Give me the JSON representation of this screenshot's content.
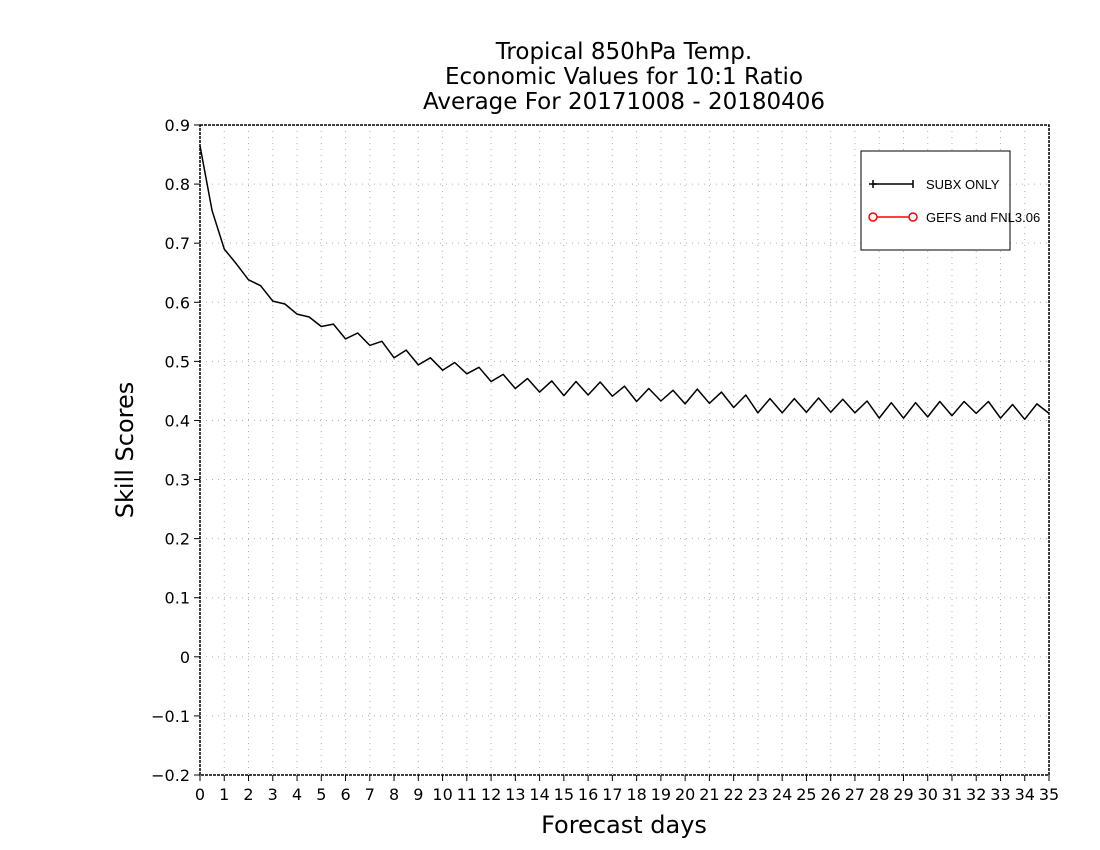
{
  "chart_data": {
    "type": "line",
    "title": [
      "Tropical 850hPa Temp.",
      "Economic Values for 10:1 Ratio",
      "Average For 20171008 - 20180406"
    ],
    "xlabel": "Forecast days",
    "ylabel": "Skill Scores",
    "xlim": [
      0,
      35
    ],
    "ylim": [
      -0.2,
      0.9
    ],
    "xticks": [
      0,
      1,
      2,
      3,
      4,
      5,
      6,
      7,
      8,
      9,
      10,
      11,
      12,
      13,
      14,
      15,
      16,
      17,
      18,
      19,
      20,
      21,
      22,
      23,
      24,
      25,
      26,
      27,
      28,
      29,
      30,
      31,
      32,
      33,
      34,
      35
    ],
    "yticks": [
      -0.2,
      -0.1,
      0,
      0.1,
      0.2,
      0.3,
      0.4,
      0.5,
      0.6,
      0.7,
      0.8,
      0.9
    ],
    "ytick_labels": [
      "−0.2",
      "−0.1",
      "0",
      "0.1",
      "0.2",
      "0.3",
      "0.4",
      "0.5",
      "0.6",
      "0.7",
      "0.8",
      "0.9"
    ],
    "grid": true,
    "legend_position": "top-right",
    "series": [
      {
        "name": "SUBX ONLY",
        "color": "#000000",
        "marker": "plus",
        "x": [
          0,
          0.5,
          1,
          1.5,
          2,
          2.5,
          3,
          3.5,
          4,
          4.5,
          5,
          5.5,
          6,
          6.5,
          7,
          7.5,
          8,
          8.5,
          9,
          9.5,
          10,
          10.5,
          11,
          11.5,
          12,
          12.5,
          13,
          13.5,
          14,
          14.5,
          15,
          15.5,
          16,
          16.5,
          17,
          17.5,
          18,
          18.5,
          19,
          19.5,
          20,
          20.5,
          21,
          21.5,
          22,
          22.5,
          23,
          23.5,
          24,
          24.5,
          25,
          25.5,
          26,
          26.5,
          27,
          27.5,
          28,
          28.5,
          29,
          29.5,
          30,
          30.5,
          31,
          31.5,
          32,
          32.5,
          33,
          33.5,
          34,
          34.5,
          35
        ],
        "y": [
          0.865,
          0.755,
          0.69,
          0.665,
          0.638,
          0.628,
          0.602,
          0.597,
          0.58,
          0.575,
          0.559,
          0.563,
          0.538,
          0.548,
          0.527,
          0.534,
          0.506,
          0.519,
          0.494,
          0.506,
          0.485,
          0.498,
          0.479,
          0.49,
          0.466,
          0.478,
          0.454,
          0.471,
          0.448,
          0.467,
          0.442,
          0.466,
          0.443,
          0.465,
          0.441,
          0.458,
          0.432,
          0.454,
          0.433,
          0.451,
          0.428,
          0.453,
          0.429,
          0.448,
          0.422,
          0.443,
          0.413,
          0.437,
          0.413,
          0.437,
          0.414,
          0.438,
          0.414,
          0.436,
          0.413,
          0.433,
          0.404,
          0.43,
          0.404,
          0.43,
          0.406,
          0.432,
          0.408,
          0.432,
          0.412,
          0.432,
          0.404,
          0.427,
          0.402,
          0.428,
          0.412
        ]
      },
      {
        "name": "GEFS and FNL3.06",
        "color": "#ff0000",
        "marker": "circle",
        "x": [],
        "y": []
      }
    ]
  }
}
